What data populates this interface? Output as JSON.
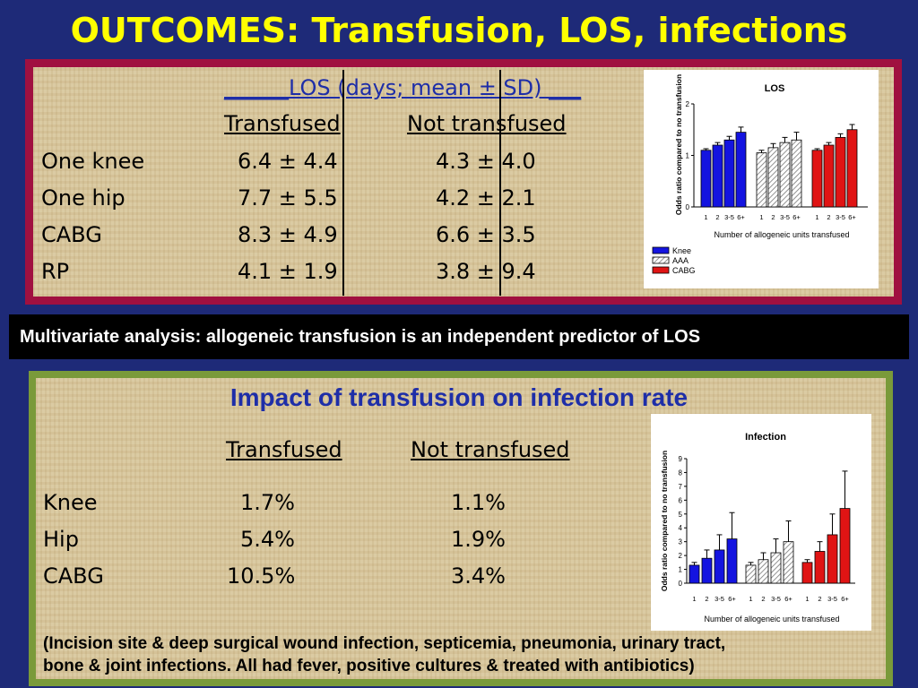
{
  "slide": {
    "title": "OUTCOMES:  Transfusion, LOS, infections"
  },
  "los_table": {
    "heading": "LOS (days; mean ± SD)",
    "col_transfused": "Transfused",
    "col_not_transfused": "Not transfused",
    "rows": [
      {
        "label": "One knee",
        "transfused": "6.4 ± 4.4",
        "not_transfused": "4.3 ± 4.0"
      },
      {
        "label": "One hip",
        "transfused": "7.7 ± 5.5",
        "not_transfused": "4.2 ± 2.1"
      },
      {
        "label": "CABG",
        "transfused": "8.3 ± 4.9",
        "not_transfused": "6.6 ± 3.5"
      },
      {
        "label": "RP",
        "transfused": "4.1 ± 1.9",
        "not_transfused": "3.8 ± 9.4"
      }
    ]
  },
  "banner": {
    "text": "Multivariate analysis: allogeneic transfusion is an independent predictor of LOS"
  },
  "infection_table": {
    "heading": "Impact of transfusion on infection rate",
    "col_transfused": "Transfused",
    "col_not_transfused": "Not transfused",
    "rows": [
      {
        "label": "Knee",
        "transfused": "1.7%",
        "not_transfused": "1.1%"
      },
      {
        "label": "Hip",
        "transfused": "5.4%",
        "not_transfused": "1.9%"
      },
      {
        "label": "CABG",
        "transfused": "10.5%",
        "not_transfused": "3.4%"
      }
    ],
    "footnote_line1": "(Incision site & deep surgical wound infection, septicemia, pneumonia, urinary tract,",
    "footnote_line2": "bone & joint infections. All had fever, positive cultures & treated with antibiotics)"
  },
  "chart_data": [
    {
      "type": "bar",
      "title": "LOS",
      "ylabel": "Odds ratio compared to no transfusion",
      "xlabel": "Number of allogeneic units transfused",
      "ylim": [
        0,
        2
      ],
      "yticks": [
        "0",
        "1",
        "2"
      ],
      "categories": [
        "1",
        "2",
        "3-5",
        "6+"
      ],
      "legend": [
        "Knee",
        "AAA",
        "CABG"
      ],
      "legend_position": "bottom-left",
      "colors": {
        "Knee": "#1414e0",
        "AAA": "#d0d0d0",
        "CABG": "#e01414"
      },
      "series": [
        {
          "name": "Knee",
          "values": [
            1.1,
            1.2,
            1.3,
            1.45
          ],
          "errors": [
            0.03,
            0.05,
            0.07,
            0.1
          ]
        },
        {
          "name": "AAA",
          "values": [
            1.05,
            1.15,
            1.25,
            1.3
          ],
          "errors": [
            0.05,
            0.08,
            0.1,
            0.15
          ]
        },
        {
          "name": "CABG",
          "values": [
            1.1,
            1.2,
            1.35,
            1.5
          ],
          "errors": [
            0.03,
            0.05,
            0.07,
            0.1
          ]
        }
      ]
    },
    {
      "type": "bar",
      "title": "Infection",
      "ylabel": "Odds ratio compared to no transfusion",
      "xlabel": "Number of allogeneic units transfused",
      "ylim": [
        0,
        9
      ],
      "yticks": [
        "0",
        "1",
        "2",
        "3",
        "4",
        "5",
        "6",
        "7",
        "8",
        "9"
      ],
      "categories": [
        "1",
        "2",
        "3-5",
        "6+"
      ],
      "colors": {
        "Knee": "#1414e0",
        "AAA": "#d0d0d0",
        "CABG": "#e01414"
      },
      "series": [
        {
          "name": "Knee",
          "values": [
            1.3,
            1.8,
            2.4,
            3.2
          ],
          "errors": [
            0.2,
            0.6,
            1.1,
            1.9
          ]
        },
        {
          "name": "AAA",
          "values": [
            1.3,
            1.7,
            2.2,
            3.0
          ],
          "errors": [
            0.2,
            0.5,
            1.0,
            1.5
          ]
        },
        {
          "name": "CABG",
          "values": [
            1.5,
            2.3,
            3.5,
            5.4
          ],
          "errors": [
            0.2,
            0.7,
            1.5,
            2.7
          ]
        }
      ]
    }
  ]
}
